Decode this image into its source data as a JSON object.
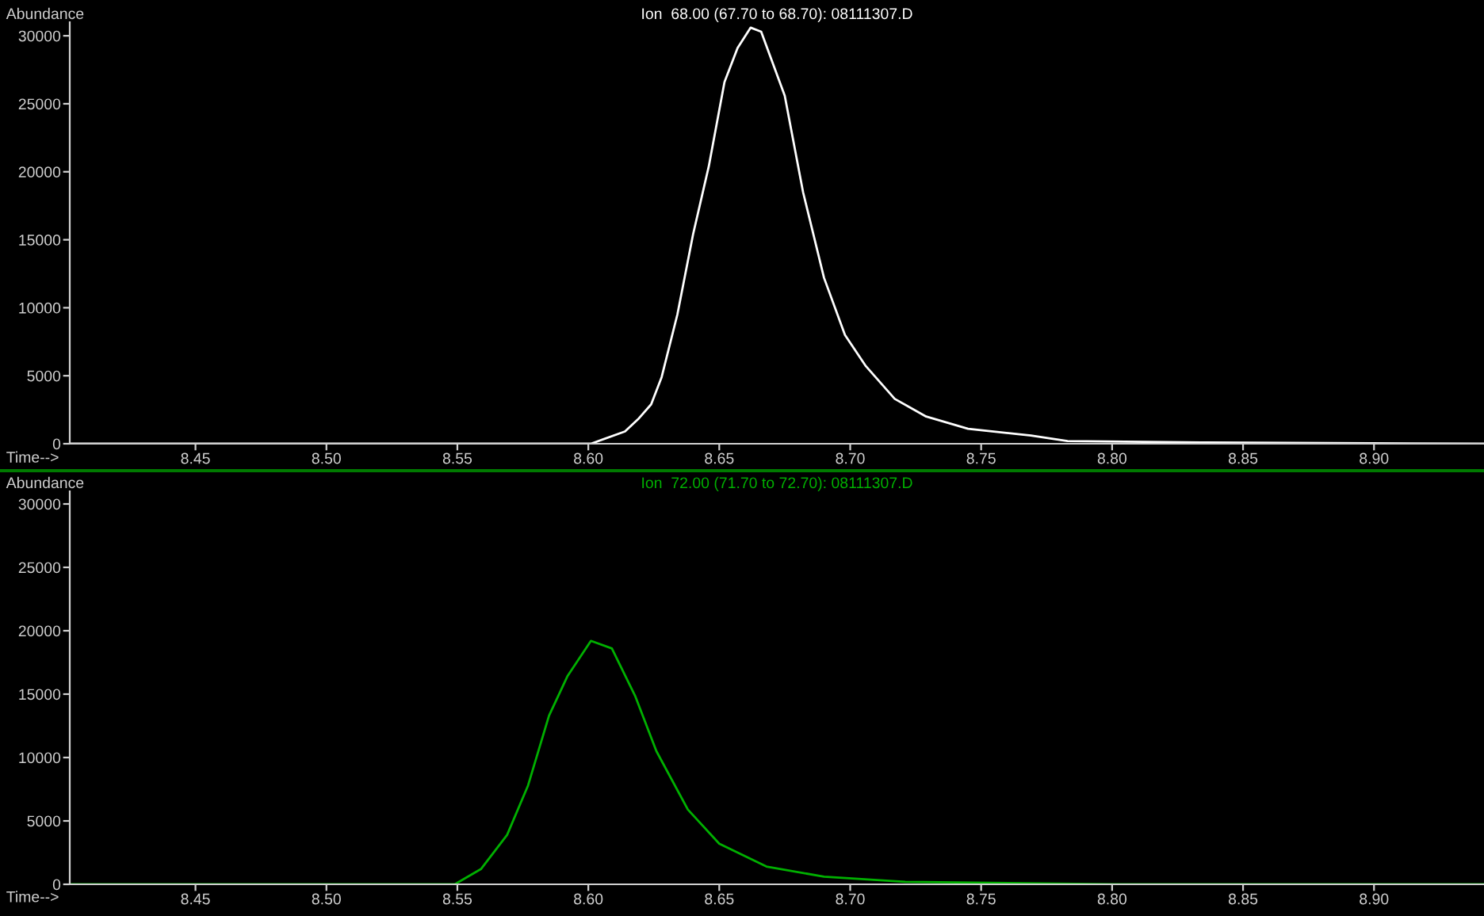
{
  "chart_data": [
    {
      "type": "line",
      "title": "Ion  68.00 (67.70 to 68.70): 08111307.D",
      "ylabel": "Abundance",
      "xlabel": "Time-->",
      "xlim": [
        8.402,
        8.942
      ],
      "ylim": [
        0,
        31000
      ],
      "xticks": [
        {
          "value": 8.45,
          "label": "8.45"
        },
        {
          "value": 8.5,
          "label": "8.50"
        },
        {
          "value": 8.55,
          "label": "8.55"
        },
        {
          "value": 8.6,
          "label": "8.60"
        },
        {
          "value": 8.65,
          "label": "8.65"
        },
        {
          "value": 8.7,
          "label": "8.70"
        },
        {
          "value": 8.75,
          "label": "8.75"
        },
        {
          "value": 8.8,
          "label": "8.80"
        },
        {
          "value": 8.85,
          "label": "8.85"
        },
        {
          "value": 8.9,
          "label": "8.90"
        }
      ],
      "yticks": [
        0,
        5000,
        10000,
        15000,
        20000,
        25000,
        30000
      ],
      "series": [
        {
          "color": "#ffffff",
          "x": [
            8.402,
            8.601,
            8.614,
            8.619,
            8.624,
            8.628,
            8.634,
            8.64,
            8.646,
            8.652,
            8.657,
            8.662,
            8.666,
            8.675,
            8.682,
            8.69,
            8.698,
            8.706,
            8.717,
            8.729,
            8.745,
            8.769,
            8.783,
            8.834,
            8.942
          ],
          "values": [
            0,
            0,
            900,
            1800,
            2900,
            4900,
            9500,
            15400,
            20400,
            26600,
            29100,
            30600,
            30300,
            25600,
            18500,
            12200,
            8000,
            5700,
            3300,
            2000,
            1100,
            600,
            200,
            100,
            0
          ]
        }
      ]
    },
    {
      "type": "line",
      "title": "Ion  72.00 (71.70 to 72.70): 08111307.D",
      "ylabel": "Abundance",
      "xlabel": "Time-->",
      "xlim": [
        8.402,
        8.942
      ],
      "ylim": [
        0,
        31000
      ],
      "xticks": [
        {
          "value": 8.45,
          "label": "8.45"
        },
        {
          "value": 8.5,
          "label": "8.50"
        },
        {
          "value": 8.55,
          "label": "8.55"
        },
        {
          "value": 8.6,
          "label": "8.60"
        },
        {
          "value": 8.65,
          "label": "8.65"
        },
        {
          "value": 8.7,
          "label": "8.70"
        },
        {
          "value": 8.75,
          "label": "8.75"
        },
        {
          "value": 8.8,
          "label": "8.80"
        },
        {
          "value": 8.85,
          "label": "8.85"
        },
        {
          "value": 8.9,
          "label": "8.90"
        }
      ],
      "yticks": [
        0,
        5000,
        10000,
        15000,
        20000,
        25000,
        30000
      ],
      "series": [
        {
          "color": "#00b000",
          "x": [
            8.402,
            8.549,
            8.559,
            8.569,
            8.577,
            8.585,
            8.592,
            8.601,
            8.609,
            8.618,
            8.626,
            8.638,
            8.65,
            8.668,
            8.69,
            8.721,
            8.8,
            8.942
          ],
          "values": [
            0,
            0,
            1200,
            3900,
            7800,
            13300,
            16400,
            19200,
            18600,
            14800,
            10500,
            5900,
            3200,
            1400,
            600,
            200,
            0,
            0
          ]
        }
      ]
    }
  ]
}
